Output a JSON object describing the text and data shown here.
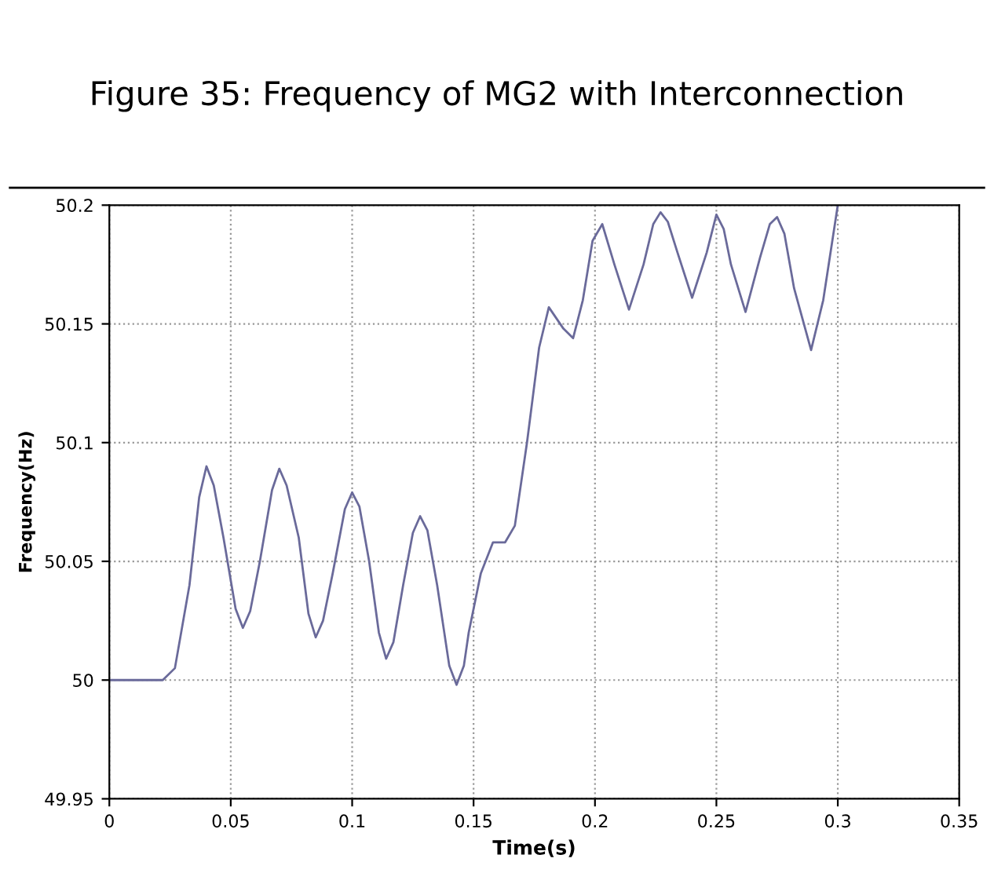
{
  "chart_data": {
    "type": "line",
    "title": "Figure 35: Frequency of MG2 with Interconnection",
    "xlabel": "Time(s)",
    "ylabel": "Frequency(Hz)",
    "x": [
      0,
      0.022,
      0.027,
      0.033,
      0.037,
      0.04,
      0.043,
      0.047,
      0.052,
      0.055,
      0.058,
      0.062,
      0.067,
      0.07,
      0.073,
      0.078,
      0.082,
      0.085,
      0.088,
      0.092,
      0.097,
      0.1,
      0.103,
      0.107,
      0.111,
      0.114,
      0.117,
      0.121,
      0.125,
      0.128,
      0.131,
      0.135,
      0.14,
      0.143,
      0.146,
      0.148,
      0.153,
      0.158,
      0.163,
      0.167,
      0.172,
      0.177,
      0.181,
      0.187,
      0.191,
      0.195,
      0.199,
      0.203,
      0.208,
      0.214,
      0.22,
      0.224,
      0.227,
      0.23,
      0.234,
      0.24,
      0.246,
      0.25,
      0.253,
      0.256,
      0.262,
      0.268,
      0.272,
      0.275,
      0.278,
      0.282,
      0.289,
      0.294,
      0.3
    ],
    "series": [
      {
        "color": "#6a6a9a",
        "values": [
          50,
          50,
          50.005,
          50.04,
          50.077,
          50.09,
          50.082,
          50.06,
          50.03,
          50.022,
          50.029,
          50.05,
          50.08,
          50.089,
          50.082,
          50.06,
          50.028,
          50.018,
          50.025,
          50.045,
          50.072,
          50.079,
          50.073,
          50.05,
          50.02,
          50.009,
          50.016,
          50.04,
          50.062,
          50.069,
          50.063,
          50.04,
          50.006,
          49.998,
          50.006,
          50.02,
          50.045,
          50.058,
          50.058,
          50.065,
          50.1,
          50.14,
          50.157,
          50.148,
          50.144,
          50.16,
          50.185,
          50.192,
          50.175,
          50.156,
          50.175,
          50.192,
          50.197,
          50.193,
          50.18,
          50.161,
          50.18,
          50.196,
          50.19,
          50.175,
          50.155,
          50.178,
          50.192,
          50.195,
          50.188,
          50.165,
          50.139,
          50.16,
          50.2
        ]
      }
    ],
    "xlim": [
      0,
      0.35
    ],
    "xticks": [
      0,
      0.05,
      0.1,
      0.15,
      0.2,
      0.25,
      0.3,
      0.35
    ],
    "ylim": [
      49.95,
      50.2
    ],
    "yticks": [
      49.95,
      50,
      50.05,
      50.1,
      50.15,
      50.2
    ],
    "grid": true,
    "line_style": "solid",
    "marker": "none"
  }
}
